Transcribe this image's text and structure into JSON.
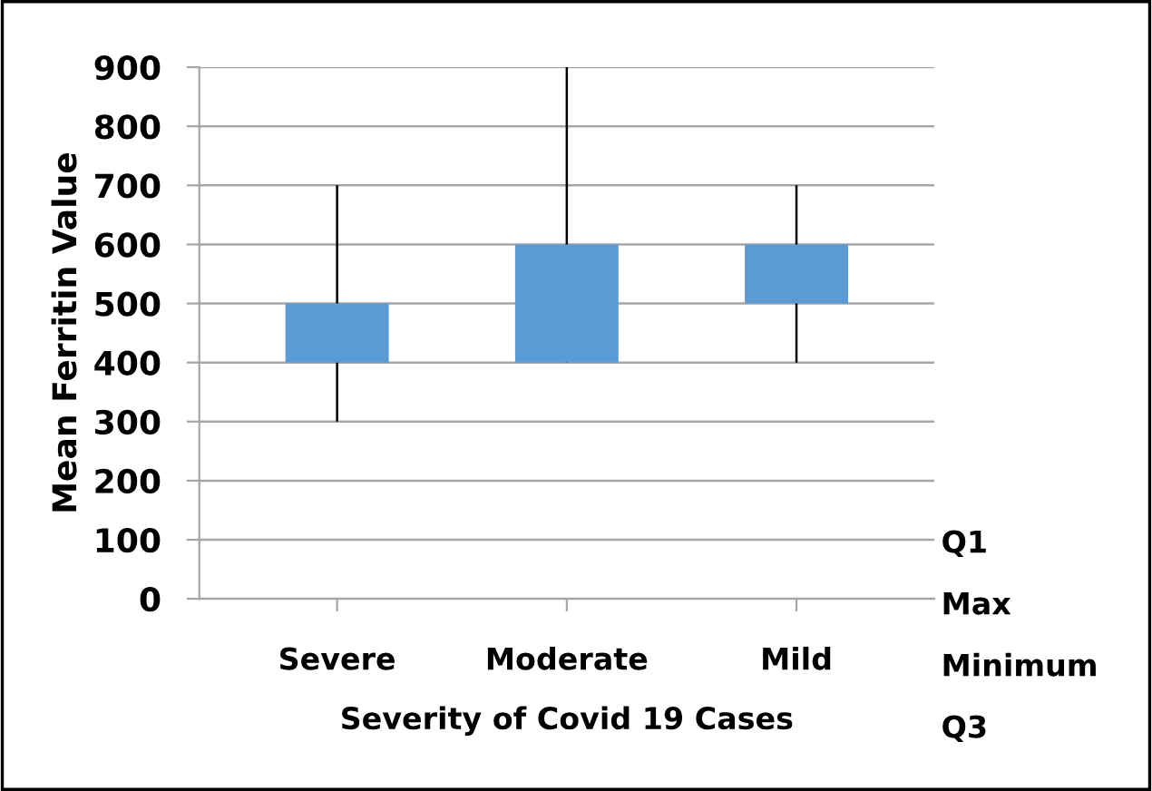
{
  "chart_data": {
    "type": "candlestick",
    "xlabel": "Severity of Covid 19 Cases",
    "ylabel": "Mean Ferritin Value",
    "categories": [
      "Severe",
      "Moderate",
      "Mild"
    ],
    "ohlc": [
      [
        400,
        700,
        300,
        500
      ],
      [
        400,
        900,
        400,
        600
      ],
      [
        500,
        700,
        400,
        600
      ]
    ],
    "color": "#5b9bd5",
    "ylim": [
      0,
      900
    ],
    "yticks": [
      0,
      100,
      200,
      300,
      400,
      500,
      600,
      700,
      800,
      900
    ],
    "grid": "y",
    "annotations": [
      "Q1",
      "Max",
      "Minimum",
      "Q3"
    ]
  }
}
